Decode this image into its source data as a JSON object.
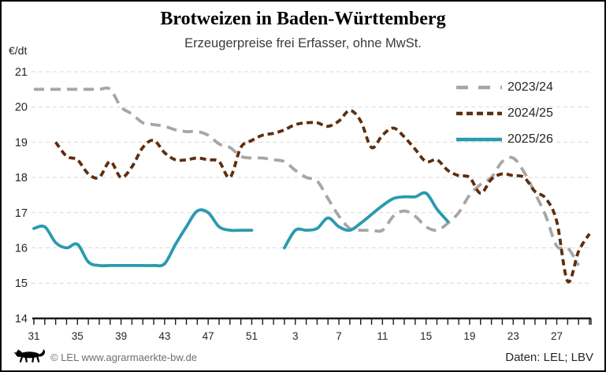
{
  "header": {
    "title": "Brotweizen in Baden-Württemberg",
    "subtitle": "Erzeugerpreise frei Erfasser, ohne MwSt.",
    "y_axis_unit": "€/dt"
  },
  "footer": {
    "copyright": "© LEL www.agrarmaerkte-bw.de",
    "source": "Daten: LEL; LBV",
    "logo": "bw-lion-logo"
  },
  "colors": {
    "grid": "#d9d9d9",
    "axis": "#1a1a1a",
    "tick_text": "#262626"
  },
  "chart_data": {
    "type": "line",
    "title": "Brotweizen in Baden-Württemberg",
    "subtitle": "Erzeugerpreise frei Erfasser, ohne MwSt.",
    "ylabel": "€/dt",
    "xlabel": "",
    "ylim": [
      14,
      21
    ],
    "grid": true,
    "legend_position": "upper-right",
    "categories": [
      31,
      32,
      33,
      34,
      35,
      36,
      37,
      38,
      39,
      40,
      41,
      42,
      43,
      44,
      45,
      46,
      47,
      48,
      49,
      50,
      51,
      52,
      1,
      2,
      3,
      4,
      5,
      6,
      7,
      8,
      9,
      10,
      11,
      12,
      13,
      14,
      15,
      16,
      17,
      18,
      19,
      20,
      21,
      22,
      23,
      24,
      25,
      26,
      27,
      28,
      29,
      30
    ],
    "x_tick_labels": [
      31,
      35,
      39,
      43,
      47,
      51,
      3,
      7,
      11,
      15,
      19,
      23,
      27
    ],
    "y_tick_labels": [
      21,
      20,
      19,
      18,
      17,
      16,
      15,
      14
    ],
    "series": [
      {
        "name": "2023/24",
        "color": "#a6a6a6",
        "style": "long-dash",
        "values": [
          20.5,
          20.5,
          20.5,
          20.5,
          20.5,
          20.5,
          20.5,
          20.5,
          20.0,
          19.8,
          19.55,
          19.5,
          19.45,
          19.35,
          19.3,
          19.3,
          19.2,
          18.95,
          18.85,
          18.6,
          18.55,
          18.55,
          18.5,
          18.45,
          18.2,
          18.0,
          17.9,
          17.4,
          16.9,
          16.55,
          16.5,
          16.5,
          16.5,
          16.9,
          17.05,
          16.9,
          16.6,
          16.5,
          16.7,
          17.0,
          17.5,
          17.8,
          18.0,
          18.45,
          18.55,
          18.15,
          17.55,
          16.9,
          16.05,
          16.0,
          15.5,
          null
        ]
      },
      {
        "name": "2024/25",
        "color": "#5f2e0d",
        "style": "short-dash",
        "values": [
          null,
          null,
          19.0,
          18.6,
          18.5,
          18.1,
          18.0,
          18.45,
          18.0,
          18.3,
          18.85,
          19.05,
          18.7,
          18.5,
          18.5,
          18.55,
          18.5,
          18.45,
          18.0,
          18.85,
          19.05,
          19.2,
          19.25,
          19.35,
          19.5,
          19.55,
          19.55,
          19.45,
          19.6,
          19.9,
          19.6,
          18.85,
          19.2,
          19.4,
          19.15,
          18.8,
          18.45,
          18.5,
          18.2,
          18.05,
          18.0,
          17.55,
          17.95,
          18.1,
          18.05,
          18.0,
          17.6,
          17.4,
          16.75,
          15.05,
          15.9,
          16.4
        ]
      },
      {
        "name": "2025/26",
        "color": "#2a9aaf",
        "style": "solid",
        "values": [
          16.55,
          16.6,
          16.15,
          16.0,
          16.1,
          15.6,
          15.5,
          15.5,
          15.5,
          15.5,
          15.5,
          15.5,
          15.55,
          16.1,
          16.6,
          17.05,
          17.0,
          16.6,
          16.5,
          16.5,
          16.5,
          null,
          null,
          16.0,
          16.5,
          16.5,
          16.55,
          16.85,
          16.6,
          16.5,
          16.7,
          16.95,
          17.2,
          17.4,
          17.45,
          17.45,
          17.55,
          17.1,
          16.75,
          null,
          null,
          null,
          null,
          null,
          null,
          null,
          null,
          null,
          null,
          null,
          null,
          null
        ]
      }
    ]
  }
}
